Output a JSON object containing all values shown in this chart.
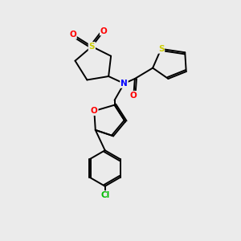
{
  "bg_color": "#ebebeb",
  "atom_colors": {
    "S": "#cccc00",
    "O": "#ff0000",
    "N": "#0000ff",
    "Cl": "#00bb00",
    "C": "#000000"
  },
  "bond_color": "#000000",
  "bond_width": 1.4,
  "font_size": 7.5
}
